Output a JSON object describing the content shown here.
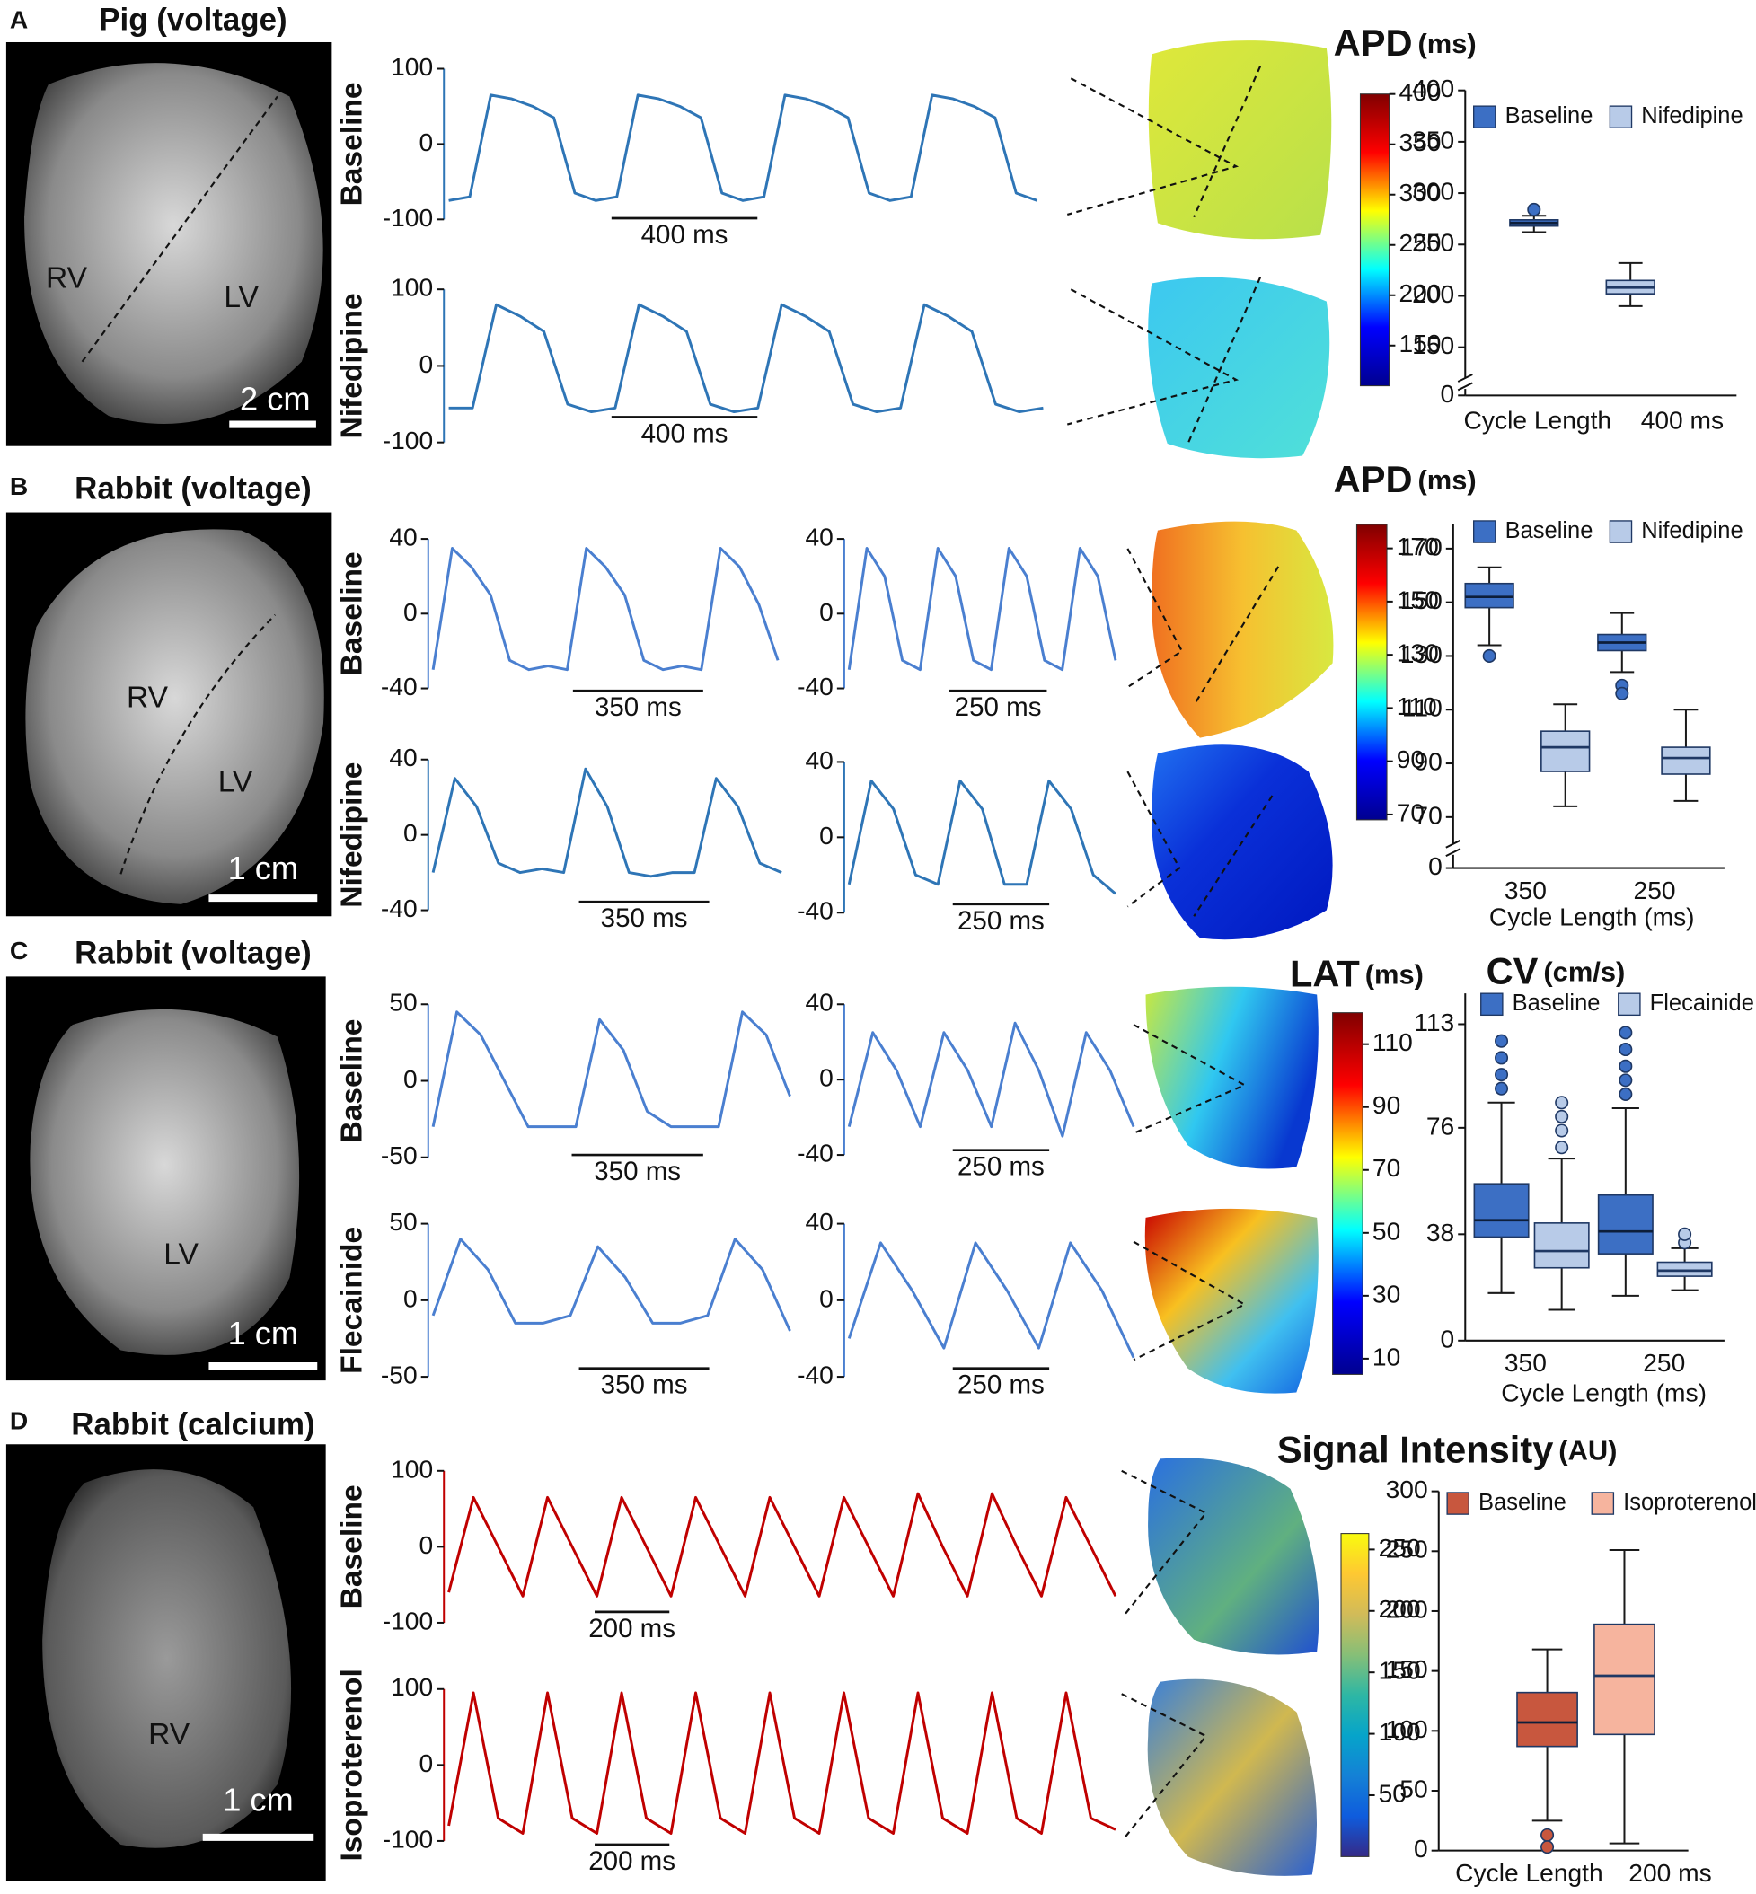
{
  "panels": [
    {
      "letter": "A",
      "title": "Pig (voltage)",
      "photo_labels": [
        "RV",
        "LV"
      ],
      "scale_bar": "2 cm"
    },
    {
      "letter": "B",
      "title": "Rabbit (voltage)",
      "photo_labels": [
        "RV",
        "LV"
      ],
      "scale_bar": "1 cm"
    },
    {
      "letter": "C",
      "title": "Rabbit (voltage)",
      "photo_labels": [
        "LV"
      ],
      "scale_bar": "1 cm"
    },
    {
      "letter": "D",
      "title": "Rabbit (calcium)",
      "photo_labels": [
        "RV"
      ],
      "scale_bar": "1 cm"
    }
  ],
  "chart_data": [
    {
      "type": "line",
      "label": "Baseline",
      "color": "#2e75b6",
      "ylim": [
        -100,
        100
      ],
      "yticks": [
        -100,
        0,
        100
      ],
      "scale_bar": "400 ms",
      "values": [
        -75,
        -70,
        65,
        60,
        50,
        35,
        -65,
        -75,
        -70,
        65,
        60,
        50,
        35,
        -65,
        -75,
        -70,
        65,
        60,
        50,
        35,
        -65,
        -75,
        -70,
        65,
        60,
        50,
        35,
        -65,
        -75
      ]
    },
    {
      "type": "line",
      "label": "Nifedipine",
      "color": "#2e75b6",
      "ylim": [
        -100,
        100
      ],
      "yticks": [
        -100,
        0,
        100
      ],
      "scale_bar": "400 ms",
      "values": [
        -55,
        -55,
        80,
        65,
        45,
        -50,
        -60,
        -55,
        80,
        65,
        45,
        -50,
        -60,
        -55,
        80,
        65,
        45,
        -50,
        -60,
        -55,
        80,
        65,
        45,
        -50,
        -60,
        -55
      ]
    },
    {
      "type": "line",
      "label": "Baseline",
      "color": "#4a7fd0",
      "ylim": [
        -40,
        40
      ],
      "yticks": [
        -40,
        0,
        40
      ],
      "scale_bar": "350 ms",
      "values": [
        -30,
        35,
        25,
        10,
        -25,
        -30,
        -28,
        -30,
        35,
        25,
        10,
        -25,
        -30,
        -28,
        -30,
        35,
        25,
        5,
        -25
      ]
    },
    {
      "type": "line",
      "color": "#4a7fd0",
      "ylim": [
        -40,
        40
      ],
      "yticks": [
        -40,
        0,
        40
      ],
      "scale_bar": "250 ms",
      "values": [
        -30,
        35,
        20,
        -25,
        -30,
        35,
        20,
        -25,
        -30,
        35,
        20,
        -25,
        -30,
        35,
        20,
        -25
      ]
    },
    {
      "type": "line",
      "label": "Nifedipine",
      "color": "#2e75b6",
      "ylim": [
        -40,
        40
      ],
      "yticks": [
        -40,
        0,
        40
      ],
      "scale_bar": "350 ms",
      "values": [
        -20,
        30,
        15,
        -15,
        -20,
        -18,
        -20,
        35,
        15,
        -20,
        -22,
        -20,
        -20,
        30,
        15,
        -15,
        -20
      ]
    },
    {
      "type": "line",
      "color": "#2e75b6",
      "ylim": [
        -40,
        40
      ],
      "yticks": [
        -40,
        0,
        40
      ],
      "scale_bar": "250 ms",
      "values": [
        -25,
        30,
        15,
        -20,
        -25,
        30,
        15,
        -25,
        -25,
        30,
        15,
        -20,
        -30
      ]
    },
    {
      "type": "line",
      "label": "Baseline",
      "color": "#4a7fd0",
      "ylim": [
        -50,
        50
      ],
      "yticks": [
        -50,
        0,
        50
      ],
      "scale_bar": "350 ms",
      "values": [
        -30,
        45,
        30,
        0,
        -30,
        -30,
        -30,
        40,
        20,
        -20,
        -30,
        -30,
        -30,
        45,
        30,
        -10
      ]
    },
    {
      "type": "line",
      "color": "#4a7fd0",
      "ylim": [
        -40,
        40
      ],
      "yticks": [
        -40,
        0,
        40
      ],
      "scale_bar": "250 ms",
      "values": [
        -25,
        25,
        5,
        -25,
        25,
        5,
        -25,
        30,
        5,
        -30,
        25,
        5,
        -25
      ]
    },
    {
      "type": "line",
      "label": "Flecainide",
      "color": "#4a7fd0",
      "ylim": [
        -50,
        50
      ],
      "yticks": [
        -50,
        0,
        50
      ],
      "scale_bar": "350 ms",
      "values": [
        -10,
        40,
        20,
        -15,
        -15,
        -10,
        35,
        15,
        -15,
        -15,
        -10,
        40,
        20,
        -20
      ]
    },
    {
      "type": "line",
      "color": "#4a7fd0",
      "ylim": [
        -40,
        40
      ],
      "yticks": [
        -40,
        0,
        40
      ],
      "scale_bar": "250 ms",
      "values": [
        -20,
        30,
        5,
        -25,
        30,
        5,
        -25,
        30,
        5,
        -30
      ]
    },
    {
      "type": "line",
      "label": "Baseline",
      "color": "#c00000",
      "ylim": [
        -100,
        100
      ],
      "yticks": [
        -100,
        0,
        100
      ],
      "scale_bar": "200 ms",
      "values": [
        -60,
        65,
        0,
        -65,
        65,
        0,
        -65,
        65,
        0,
        -65,
        65,
        0,
        -65,
        65,
        0,
        -65,
        65,
        0,
        -65,
        70,
        0,
        -65,
        70,
        0,
        -65,
        65,
        0,
        -65
      ]
    },
    {
      "type": "line",
      "label": "Isoproterenol",
      "color": "#c00000",
      "ylim": [
        -100,
        100
      ],
      "yticks": [
        -100,
        0,
        100
      ],
      "scale_bar": "200 ms",
      "values": [
        -80,
        95,
        -70,
        -90,
        95,
        -70,
        -90,
        95,
        -70,
        -90,
        95,
        -70,
        -90,
        95,
        -70,
        -90,
        95,
        -70,
        -90,
        95,
        -70,
        -90,
        95,
        -70,
        -90,
        95,
        -70,
        -85
      ]
    },
    {
      "type": "colorbar",
      "title": "APD",
      "unit": "(ms)",
      "colormap": [
        "#00008f",
        "#0000ff",
        "#00ffff",
        "#ffff00",
        "#ff0000",
        "#800000"
      ],
      "ylim": [
        110,
        400
      ],
      "yticks": [
        150,
        200,
        250,
        300,
        350,
        400
      ]
    },
    {
      "type": "colorbar",
      "title": "APD",
      "unit": "(ms)",
      "colormap": [
        "#00008f",
        "#0000ff",
        "#00ffff",
        "#ffff00",
        "#ff0000",
        "#800000"
      ],
      "ylim": [
        68,
        179
      ],
      "yticks": [
        70,
        90,
        110,
        130,
        150,
        170
      ]
    },
    {
      "type": "colorbar",
      "title": "LAT",
      "unit": "(ms)",
      "colormap": [
        "#00008f",
        "#0000ff",
        "#00ffff",
        "#ffff00",
        "#ff0000",
        "#800000"
      ],
      "ylim": [
        5,
        120
      ],
      "yticks": [
        10,
        30,
        50,
        70,
        90,
        110
      ]
    },
    {
      "type": "colorbar",
      "title": "Signal Intensity",
      "unit": "(AU)",
      "colormap": [
        "#352a87",
        "#0f5cdd",
        "#1481d6",
        "#06a4ca",
        "#2eb7a4",
        "#87bf77",
        "#d1bb59",
        "#fec832",
        "#f9fb0e"
      ],
      "ylim": [
        0,
        263
      ],
      "yticks": [
        50,
        100,
        150,
        200,
        250
      ]
    },
    {
      "type": "box",
      "x_label": "Cycle Length",
      "categories": [
        "400 ms"
      ],
      "ylim": [
        120,
        400
      ],
      "yticks": [
        150,
        200,
        250,
        300,
        350,
        400
      ],
      "axis_break_tick": 0,
      "series": [
        {
          "name": "Baseline",
          "color": "#3c6fc4",
          "boxes": [
            {
              "min": 262,
              "q1": 268,
              "median": 271,
              "q3": 274,
              "max": 278,
              "outliers": [
                284
              ]
            }
          ]
        },
        {
          "name": "Nifedipine",
          "color": "#b8cbe8",
          "boxes": [
            {
              "min": 190,
              "q1": 202,
              "median": 208,
              "q3": 215,
              "max": 232,
              "outliers": []
            }
          ]
        }
      ]
    },
    {
      "type": "box",
      "x_label": "Cycle Length (ms)",
      "categories": [
        "350",
        "250"
      ],
      "ylim": [
        60,
        179
      ],
      "yticks": [
        70,
        90,
        110,
        130,
        150,
        170
      ],
      "axis_break_tick": 0,
      "series": [
        {
          "name": "Baseline",
          "color": "#3c6fc4",
          "boxes": [
            {
              "min": 134,
              "q1": 148,
              "median": 152,
              "q3": 157,
              "max": 163,
              "outliers": [
                130
              ]
            },
            {
              "min": 124,
              "q1": 132,
              "median": 135,
              "q3": 138,
              "max": 146,
              "outliers": [
                119,
                116
              ]
            }
          ]
        },
        {
          "name": "Nifedipine",
          "color": "#b8cbe8",
          "boxes": [
            {
              "min": 74,
              "q1": 87,
              "median": 96,
              "q3": 102,
              "max": 112,
              "outliers": []
            },
            {
              "min": 76,
              "q1": 86,
              "median": 92,
              "q3": 96,
              "max": 110,
              "outliers": []
            }
          ]
        }
      ]
    },
    {
      "type": "box",
      "title": "CV",
      "unit": "(cm/s)",
      "x_label": "Cycle Length (ms)",
      "categories": [
        "350",
        "250"
      ],
      "ylim": [
        0,
        124
      ],
      "yticks": [
        0,
        38,
        76,
        113
      ],
      "series": [
        {
          "name": "Baseline",
          "color": "#3c6fc4",
          "boxes": [
            {
              "min": 17,
              "q1": 37,
              "median": 43,
              "q3": 56,
              "max": 85,
              "outliers": [
                90,
                95,
                101,
                107
              ]
            },
            {
              "min": 16,
              "q1": 31,
              "median": 39,
              "q3": 52,
              "max": 83,
              "outliers": [
                88,
                93,
                98,
                104,
                110
              ]
            }
          ]
        },
        {
          "name": "Flecainide",
          "color": "#b8cbe8",
          "boxes": [
            {
              "min": 11,
              "q1": 26,
              "median": 32,
              "q3": 42,
              "max": 65,
              "outliers": [
                69,
                75,
                80,
                85
              ]
            },
            {
              "min": 18,
              "q1": 23,
              "median": 25,
              "q3": 28,
              "max": 33,
              "outliers": [
                35,
                38
              ]
            }
          ]
        }
      ]
    },
    {
      "type": "box",
      "x_label": "Cycle Length",
      "categories": [
        "200 ms"
      ],
      "ylim": [
        0,
        300
      ],
      "yticks": [
        0,
        50,
        100,
        150,
        200,
        250,
        300
      ],
      "series": [
        {
          "name": "Baseline",
          "color": "#c8573e",
          "boxes": [
            {
              "min": 25,
              "q1": 87,
              "median": 107,
              "q3": 132,
              "max": 168,
              "outliers": [
                13,
                3
              ]
            }
          ]
        },
        {
          "name": "Isoproterenol",
          "color": "#f6b49e",
          "boxes": [
            {
              "min": 6,
              "q1": 97,
              "median": 146,
              "q3": 189,
              "max": 251,
              "outliers": []
            }
          ]
        }
      ]
    }
  ]
}
